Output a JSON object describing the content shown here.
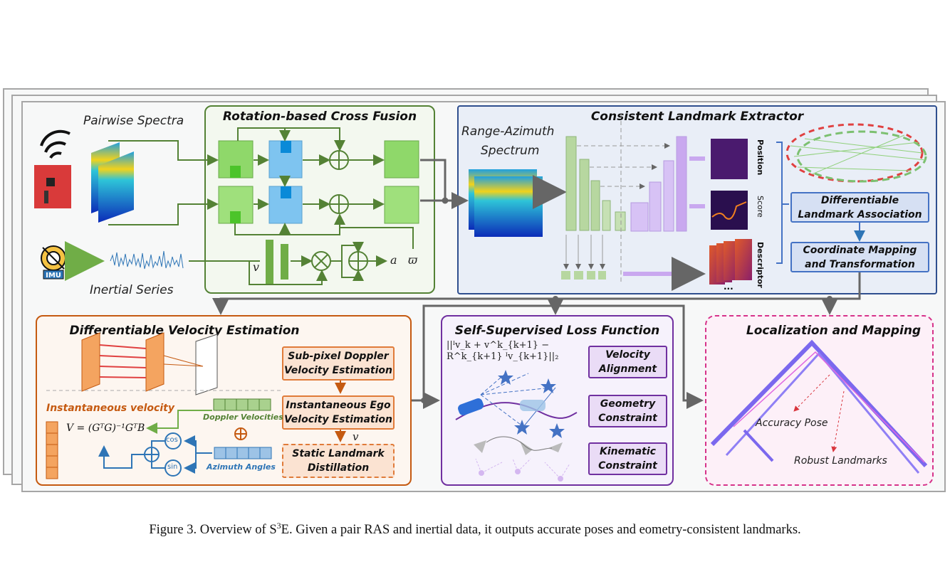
{
  "figure": {
    "caption_prefix": "Figure 3. Overview of S",
    "caption_sup": "3",
    "caption_rest": "E. Given a pair RAS and inertial data, it outputs accurate poses and eometry-consistent landmarks."
  },
  "inputs": {
    "pairwise_spectra": "Pairwise Spectra",
    "inertial_series": "Inertial Series",
    "imu_badge": "IMU",
    "radar_icon": "radar-board-icon",
    "imu_icon": "imu-gyroscope-icon"
  },
  "cross_fusion": {
    "title": "Rotation-based  Cross Fusion",
    "v_symbol": "v",
    "a_symbol": "a",
    "omega_symbol": "ϖ"
  },
  "landmark_extractor": {
    "title": "Consistent  Landmark  Extractor",
    "spectrum_label_1": "Range-Azimuth",
    "spectrum_label_2": "Spectrum",
    "outputs": [
      "Position",
      "Score",
      "Descriptor"
    ],
    "ellipsis": "...",
    "association": "Differentiable Landmark Association",
    "mapping": "Coordinate Mapping and Transformation"
  },
  "velocity": {
    "title": "Differentiable  Velocity  Estimation",
    "steps": [
      "Sub-pixel Doppler Velocity Estimation",
      "Instantaneous Ego Velocity Estimation",
      "Static Landmark Distillation"
    ],
    "v_symbol": "v",
    "instantaneous_label": "Instantaneous velocity",
    "formula": "V = (GᵀG)⁻¹GᵀB",
    "doppler": "Doppler Velocities",
    "azimuth": "Azimuth Angles",
    "cos": "cos",
    "sin": "sin"
  },
  "loss": {
    "title": "Self-Supervised  Loss Function",
    "formula": "||ᴵv_k + v^k_{k+1} − R^k_{k+1} ᴵv_{k+1}||₂",
    "terms": [
      "Velocity Alignment",
      "Geometry Constraint",
      "Kinematic Constraint"
    ]
  },
  "localization": {
    "title": "Localization  and  Mapping",
    "pose_label": "Accuracy Pose",
    "landmarks_label": "Robust Landmarks"
  },
  "colors": {
    "fusion": "#548235",
    "extractor": "#2f4f8f",
    "velocity": "#c55a11",
    "loss": "#7030a0",
    "localization": "#d6338a"
  }
}
